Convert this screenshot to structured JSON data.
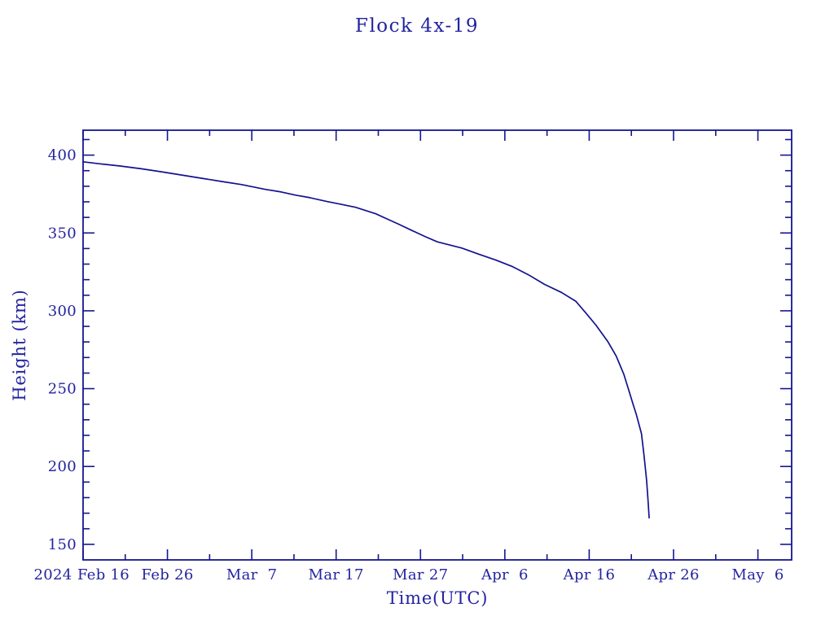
{
  "chart_data": {
    "type": "line",
    "title": "Flock 4x-19",
    "xlabel": "Time(UTC)",
    "ylabel": "Height (km)",
    "year_label": "2024",
    "x_unit": "days since first x tick (2024 Feb 16, UTC)",
    "xlim": [
      0,
      84
    ],
    "ylim": [
      140,
      416
    ],
    "grid": false,
    "legend": "none",
    "x_major_ticks": [
      {
        "t": 0,
        "label": "Feb 16"
      },
      {
        "t": 10,
        "label": "Feb 26"
      },
      {
        "t": 20,
        "label": "Mar  7"
      },
      {
        "t": 30,
        "label": "Mar 17"
      },
      {
        "t": 40,
        "label": "Mar 27"
      },
      {
        "t": 50,
        "label": "Apr  6"
      },
      {
        "t": 60,
        "label": "Apr 16"
      },
      {
        "t": 70,
        "label": "Apr 26"
      },
      {
        "t": 80,
        "label": "May  6"
      }
    ],
    "x_minor_ticks": [
      5,
      15,
      25,
      35,
      45,
      55,
      65,
      75
    ],
    "y_major_ticks": [
      150,
      200,
      250,
      300,
      350,
      400
    ],
    "y_minor_ticks": [
      160,
      170,
      180,
      190,
      210,
      220,
      230,
      240,
      260,
      270,
      280,
      290,
      310,
      320,
      330,
      340,
      360,
      370,
      380,
      390,
      410
    ],
    "colors": {
      "line": "#12128f",
      "axis": "#15158f",
      "text": "#2323a0",
      "background": "#ffffff"
    },
    "series": [
      {
        "name": "Flock 4x-19",
        "points": [
          [
            0,
            395.7
          ],
          [
            2,
            394.4
          ],
          [
            4.4,
            393.0
          ],
          [
            6.9,
            391.2
          ],
          [
            9.3,
            389.3
          ],
          [
            11.7,
            387.2
          ],
          [
            14.1,
            385.1
          ],
          [
            16.5,
            383.0
          ],
          [
            18.8,
            381.1
          ],
          [
            21.6,
            378.0
          ],
          [
            23.5,
            376.3
          ],
          [
            25.2,
            374.3
          ],
          [
            26.7,
            372.9
          ],
          [
            28.9,
            370.2
          ],
          [
            30.6,
            368.4
          ],
          [
            32.3,
            366.5
          ],
          [
            34.7,
            362.3
          ],
          [
            36.0,
            359.1
          ],
          [
            37.5,
            355.4
          ],
          [
            38.9,
            351.8
          ],
          [
            40.5,
            347.8
          ],
          [
            42.0,
            344.3
          ],
          [
            44.9,
            340.3
          ],
          [
            47.0,
            336.2
          ],
          [
            48.9,
            332.7
          ],
          [
            50.9,
            328.4
          ],
          [
            52.8,
            323.1
          ],
          [
            54.7,
            317.0
          ],
          [
            56.7,
            311.8
          ],
          [
            58.4,
            306.2
          ],
          [
            59.6,
            298.6
          ],
          [
            60.8,
            290.8
          ],
          [
            62.2,
            280.3
          ],
          [
            63.2,
            270.9
          ],
          [
            64.1,
            259.3
          ],
          [
            64.7,
            248.9
          ],
          [
            65.2,
            240.0
          ],
          [
            65.6,
            233.2
          ],
          [
            66.2,
            221.1
          ],
          [
            66.5,
            206.9
          ],
          [
            66.8,
            191.2
          ],
          [
            67.0,
            176.5
          ],
          [
            67.1,
            167.0
          ]
        ]
      }
    ]
  }
}
